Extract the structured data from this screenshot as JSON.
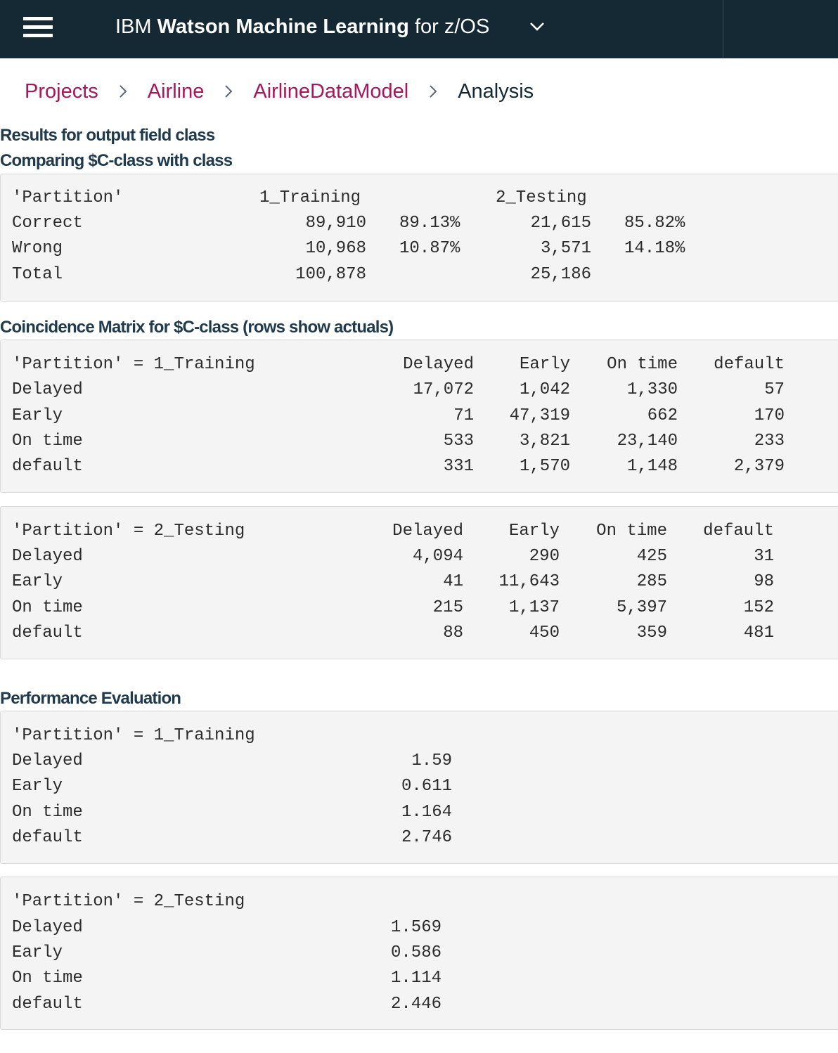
{
  "header": {
    "brand": "IBM",
    "product": "Watson Machine Learning",
    "suffix": "for z/OS",
    "menu_icon": "hamburger-menu-icon",
    "dropdown_icon": "chevron-down-icon"
  },
  "breadcrumb": {
    "items": [
      "Projects",
      "Airline",
      "AirlineDataModel"
    ],
    "current": "Analysis",
    "separator_icon": "chevron-right-icon"
  },
  "results": {
    "title": "Results for output field class",
    "subtitle": "Comparing $C-class with class",
    "table": {
      "partition_label": "'Partition'",
      "partitions": [
        "1_Training",
        "2_Testing"
      ],
      "rows": [
        {
          "label": "Correct",
          "training": "89,910",
          "training_pct": "89.13%",
          "testing": "21,615",
          "testing_pct": "85.82%"
        },
        {
          "label": "Wrong",
          "training": "10,968",
          "training_pct": "10.87%",
          "testing": "3,571",
          "testing_pct": "14.18%"
        },
        {
          "label": "Total",
          "training": "100,878",
          "training_pct": "",
          "testing": "25,186",
          "testing_pct": ""
        }
      ]
    }
  },
  "coincidence": {
    "title": "Coincidence Matrix for $C-class (rows show actuals)",
    "columns": [
      "Delayed",
      "Early",
      "On time",
      "default"
    ],
    "matrices": [
      {
        "header": "'Partition' = 1_Training",
        "rows": [
          {
            "label": "Delayed",
            "values": [
              "17,072",
              "1,042",
              "1,330",
              "57"
            ]
          },
          {
            "label": "Early",
            "values": [
              "71",
              "47,319",
              "662",
              "170"
            ]
          },
          {
            "label": "On time",
            "values": [
              "533",
              "3,821",
              "23,140",
              "233"
            ]
          },
          {
            "label": "default",
            "values": [
              "331",
              "1,570",
              "1,148",
              "2,379"
            ]
          }
        ]
      },
      {
        "header": "'Partition' = 2_Testing",
        "rows": [
          {
            "label": "Delayed",
            "values": [
              "4,094",
              "290",
              "425",
              "31"
            ]
          },
          {
            "label": "Early",
            "values": [
              "41",
              "11,643",
              "285",
              "98"
            ]
          },
          {
            "label": "On time",
            "values": [
              "215",
              "1,137",
              "5,397",
              "152"
            ]
          },
          {
            "label": "default",
            "values": [
              "88",
              "450",
              "359",
              "481"
            ]
          }
        ]
      }
    ]
  },
  "performance": {
    "title": "Performance Evaluation",
    "blocks": [
      {
        "header": "'Partition' = 1_Training",
        "rows": [
          {
            "label": "Delayed",
            "value": "1.59"
          },
          {
            "label": "Early",
            "value": "0.611"
          },
          {
            "label": "On time",
            "value": "1.164"
          },
          {
            "label": "default",
            "value": "2.746"
          }
        ]
      },
      {
        "header": "'Partition' = 2_Testing",
        "rows": [
          {
            "label": "Delayed",
            "value": "1.569"
          },
          {
            "label": "Early",
            "value": "0.586"
          },
          {
            "label": "On time",
            "value": "1.114"
          },
          {
            "label": "default",
            "value": "2.446"
          }
        ]
      }
    ]
  }
}
